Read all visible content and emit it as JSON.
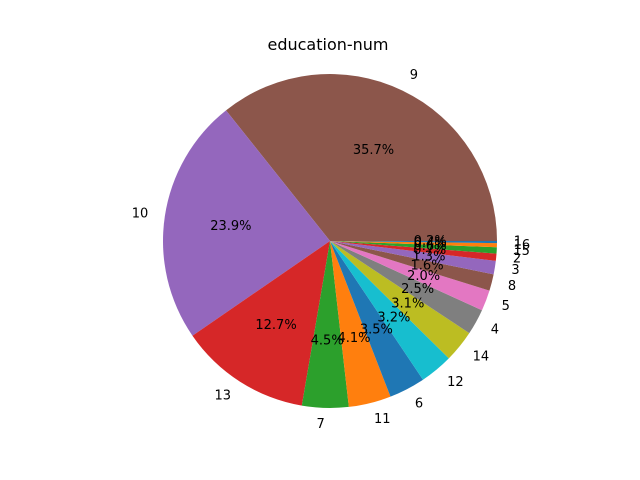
{
  "chart_data": {
    "type": "pie",
    "title": "education-num",
    "start_angle_deg": 0,
    "direction": "counterclockwise",
    "slices": [
      {
        "label": "9",
        "pct": 35.7,
        "pct_label": "35.7%",
        "color": "#8c564b"
      },
      {
        "label": "10",
        "pct": 23.9,
        "pct_label": "23.9%",
        "color": "#9467bd"
      },
      {
        "label": "13",
        "pct": 12.7,
        "pct_label": "12.7%",
        "color": "#d62728"
      },
      {
        "label": "7",
        "pct": 4.5,
        "pct_label": "4.5%",
        "color": "#2ca02c"
      },
      {
        "label": "11",
        "pct": 4.1,
        "pct_label": "4.1%",
        "color": "#ff7f0e"
      },
      {
        "label": "6",
        "pct": 3.5,
        "pct_label": "3.5%",
        "color": "#1f77b4"
      },
      {
        "label": "12",
        "pct": 3.2,
        "pct_label": "3.2%",
        "color": "#17becf"
      },
      {
        "label": "14",
        "pct": 3.1,
        "pct_label": "3.1%",
        "color": "#bcbd22"
      },
      {
        "label": "4",
        "pct": 2.5,
        "pct_label": "2.5%",
        "color": "#7f7f7f"
      },
      {
        "label": "5",
        "pct": 2.0,
        "pct_label": "2.0%",
        "color": "#e377c2"
      },
      {
        "label": "8",
        "pct": 1.6,
        "pct_label": "1.6%",
        "color": "#8c564b"
      },
      {
        "label": "3",
        "pct": 1.3,
        "pct_label": "1.3%",
        "color": "#9467bd"
      },
      {
        "label": "2",
        "pct": 0.7,
        "pct_label": "0.7%",
        "color": "#d62728"
      },
      {
        "label": "15",
        "pct": 0.6,
        "pct_label": "0.6%",
        "color": "#2ca02c"
      },
      {
        "label": "16",
        "pct": 0.4,
        "pct_label": "0.4%",
        "color": "#ff7f0e"
      },
      {
        "label": "1",
        "pct": 0.2,
        "pct_label": "0.2%",
        "color": "#1f77b4"
      }
    ]
  }
}
